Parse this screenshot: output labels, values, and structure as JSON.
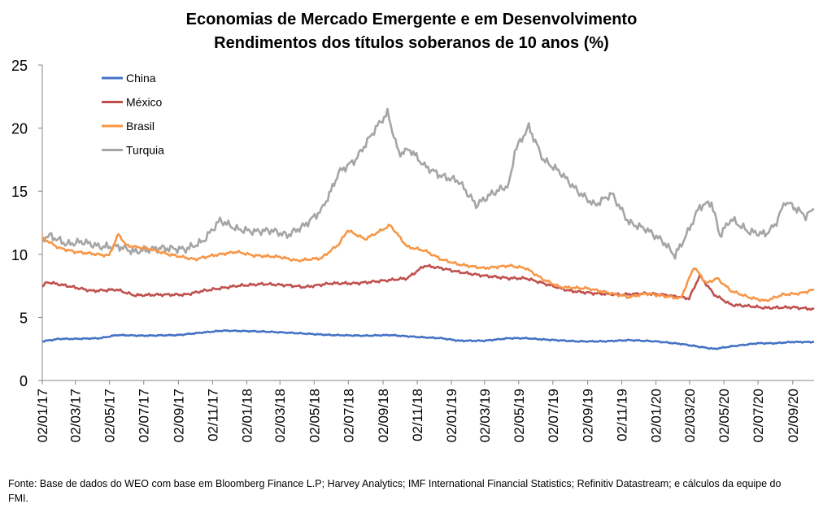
{
  "chart_data": {
    "type": "line",
    "title": "Economias de Mercado Emergente e em Desenvolvimento",
    "subtitle": "Rendimentos dos títulos soberanos de 10 anos (%)",
    "xlabel": "",
    "ylabel": "",
    "ylim": [
      0,
      25
    ],
    "yticks": [
      "0",
      "5",
      "10",
      "15",
      "20",
      "25"
    ],
    "x_tick_labels": [
      "02/01/17",
      "02/03/17",
      "02/05/17",
      "02/07/17",
      "02/09/17",
      "02/11/17",
      "02/01/18",
      "02/03/18",
      "02/05/18",
      "02/07/18",
      "02/09/18",
      "02/11/18",
      "02/01/19",
      "02/03/19",
      "02/05/19",
      "02/07/19",
      "02/09/19",
      "02/11/19",
      "02/01/20",
      "02/03/20",
      "02/05/20",
      "02/07/20",
      "02/09/20"
    ],
    "x_range": [
      "2017-01-02",
      "2020-10-10"
    ],
    "grid": false,
    "legend": "top-left",
    "series": [
      {
        "name": "China",
        "color": "#4472C4",
        "points": [
          [
            "2017-01-02",
            3.1
          ],
          [
            "2017-02-01",
            3.3
          ],
          [
            "2017-03-01",
            3.3
          ],
          [
            "2017-04-15",
            3.35
          ],
          [
            "2017-05-15",
            3.6
          ],
          [
            "2017-07-01",
            3.55
          ],
          [
            "2017-09-01",
            3.6
          ],
          [
            "2017-10-15",
            3.8
          ],
          [
            "2017-11-20",
            3.95
          ],
          [
            "2018-01-15",
            3.9
          ],
          [
            "2018-02-15",
            3.85
          ],
          [
            "2018-04-01",
            3.75
          ],
          [
            "2018-06-01",
            3.6
          ],
          [
            "2018-08-01",
            3.55
          ],
          [
            "2018-09-15",
            3.6
          ],
          [
            "2018-11-01",
            3.45
          ],
          [
            "2018-12-15",
            3.35
          ],
          [
            "2019-01-15",
            3.15
          ],
          [
            "2019-03-01",
            3.15
          ],
          [
            "2019-04-15",
            3.35
          ],
          [
            "2019-05-15",
            3.35
          ],
          [
            "2019-06-15",
            3.25
          ],
          [
            "2019-08-15",
            3.1
          ],
          [
            "2019-10-01",
            3.1
          ],
          [
            "2019-11-15",
            3.2
          ],
          [
            "2020-01-01",
            3.1
          ],
          [
            "2020-02-15",
            2.9
          ],
          [
            "2020-03-15",
            2.7
          ],
          [
            "2020-04-15",
            2.5
          ],
          [
            "2020-05-15",
            2.7
          ],
          [
            "2020-07-01",
            2.95
          ],
          [
            "2020-08-01",
            2.95
          ],
          [
            "2020-09-01",
            3.05
          ],
          [
            "2020-10-10",
            3.05
          ]
        ]
      },
      {
        "name": "México",
        "color": "#C0504D",
        "points": [
          [
            "2017-01-02",
            7.4
          ],
          [
            "2017-01-10",
            7.8
          ],
          [
            "2017-02-15",
            7.5
          ],
          [
            "2017-04-01",
            7.1
          ],
          [
            "2017-05-15",
            7.2
          ],
          [
            "2017-06-15",
            6.75
          ],
          [
            "2017-08-01",
            6.8
          ],
          [
            "2017-09-15",
            6.8
          ],
          [
            "2017-10-15",
            7.1
          ],
          [
            "2017-11-15",
            7.3
          ],
          [
            "2017-12-15",
            7.5
          ],
          [
            "2018-02-01",
            7.65
          ],
          [
            "2018-03-15",
            7.55
          ],
          [
            "2018-04-15",
            7.4
          ],
          [
            "2018-06-01",
            7.7
          ],
          [
            "2018-07-15",
            7.7
          ],
          [
            "2018-09-01",
            7.9
          ],
          [
            "2018-10-15",
            8.1
          ],
          [
            "2018-11-15",
            9.1
          ],
          [
            "2018-12-15",
            8.9
          ],
          [
            "2019-01-15",
            8.6
          ],
          [
            "2019-03-01",
            8.3
          ],
          [
            "2019-04-15",
            8.1
          ],
          [
            "2019-05-15",
            8.1
          ],
          [
            "2019-06-15",
            7.7
          ],
          [
            "2019-08-01",
            7.1
          ],
          [
            "2019-09-15",
            6.9
          ],
          [
            "2019-11-01",
            6.8
          ],
          [
            "2019-12-15",
            6.9
          ],
          [
            "2020-01-15",
            6.8
          ],
          [
            "2020-02-15",
            6.6
          ],
          [
            "2020-03-01",
            6.5
          ],
          [
            "2020-03-20",
            8.3
          ],
          [
            "2020-04-15",
            6.8
          ],
          [
            "2020-05-15",
            6.0
          ],
          [
            "2020-06-15",
            5.9
          ],
          [
            "2020-07-15",
            5.75
          ],
          [
            "2020-09-01",
            5.8
          ],
          [
            "2020-10-10",
            5.65
          ]
        ]
      },
      {
        "name": "Brasil",
        "color": "#F79646",
        "points": [
          [
            "2017-01-02",
            11.3
          ],
          [
            "2017-02-01",
            10.5
          ],
          [
            "2017-03-01",
            10.2
          ],
          [
            "2017-05-01",
            9.9
          ],
          [
            "2017-05-18",
            11.6
          ],
          [
            "2017-06-01",
            10.7
          ],
          [
            "2017-07-15",
            10.4
          ],
          [
            "2017-08-15",
            10.0
          ],
          [
            "2017-10-01",
            9.6
          ],
          [
            "2017-11-01",
            9.9
          ],
          [
            "2017-12-15",
            10.2
          ],
          [
            "2018-01-15",
            9.9
          ],
          [
            "2018-03-01",
            9.8
          ],
          [
            "2018-04-01",
            9.5
          ],
          [
            "2018-05-15",
            9.7
          ],
          [
            "2018-06-15",
            10.8
          ],
          [
            "2018-07-01",
            11.9
          ],
          [
            "2018-08-01",
            11.2
          ],
          [
            "2018-09-15",
            12.3
          ],
          [
            "2018-10-15",
            10.6
          ],
          [
            "2018-11-15",
            10.3
          ],
          [
            "2018-12-15",
            9.6
          ],
          [
            "2019-01-15",
            9.2
          ],
          [
            "2019-03-01",
            8.9
          ],
          [
            "2019-04-15",
            9.1
          ],
          [
            "2019-05-15",
            8.9
          ],
          [
            "2019-06-15",
            8.0
          ],
          [
            "2019-07-15",
            7.4
          ],
          [
            "2019-09-01",
            7.3
          ],
          [
            "2019-10-15",
            6.9
          ],
          [
            "2019-11-15",
            6.6
          ],
          [
            "2019-12-15",
            6.9
          ],
          [
            "2020-01-15",
            6.7
          ],
          [
            "2020-02-15",
            6.5
          ],
          [
            "2020-03-10",
            9.0
          ],
          [
            "2020-04-01",
            7.7
          ],
          [
            "2020-04-20",
            8.1
          ],
          [
            "2020-05-15",
            7.1
          ],
          [
            "2020-06-15",
            6.6
          ],
          [
            "2020-07-15",
            6.3
          ],
          [
            "2020-08-15",
            6.8
          ],
          [
            "2020-09-15",
            6.9
          ],
          [
            "2020-10-10",
            7.2
          ]
        ]
      },
      {
        "name": "Turquia",
        "color": "#A5A5A5",
        "points": [
          [
            "2017-01-02",
            11.2
          ],
          [
            "2017-01-15",
            11.5
          ],
          [
            "2017-02-15",
            10.8
          ],
          [
            "2017-03-15",
            11.0
          ],
          [
            "2017-04-15",
            10.6
          ],
          [
            "2017-05-20",
            10.6
          ],
          [
            "2017-06-15",
            10.2
          ],
          [
            "2017-08-01",
            10.5
          ],
          [
            "2017-09-15",
            10.4
          ],
          [
            "2017-10-15",
            11.0
          ],
          [
            "2017-11-15",
            12.7
          ],
          [
            "2017-12-15",
            12.0
          ],
          [
            "2018-01-15",
            11.8
          ],
          [
            "2018-02-15",
            11.9
          ],
          [
            "2018-03-15",
            11.5
          ],
          [
            "2018-04-15",
            12.3
          ],
          [
            "2018-05-15",
            13.5
          ],
          [
            "2018-06-01",
            15.0
          ],
          [
            "2018-06-15",
            16.5
          ],
          [
            "2018-07-15",
            17.5
          ],
          [
            "2018-08-20",
            20.0
          ],
          [
            "2018-09-10",
            21.2
          ],
          [
            "2018-09-30",
            18.0
          ],
          [
            "2018-10-20",
            18.3
          ],
          [
            "2018-11-15",
            17.0
          ],
          [
            "2018-12-15",
            16.2
          ],
          [
            "2019-01-15",
            15.8
          ],
          [
            "2019-02-15",
            13.9
          ],
          [
            "2019-03-15",
            14.8
          ],
          [
            "2019-04-15",
            15.5
          ],
          [
            "2019-04-25",
            18.2
          ],
          [
            "2019-05-20",
            20.1
          ],
          [
            "2019-06-15",
            17.5
          ],
          [
            "2019-07-15",
            16.5
          ],
          [
            "2019-08-15",
            15.0
          ],
          [
            "2019-09-15",
            13.9
          ],
          [
            "2019-10-15",
            14.8
          ],
          [
            "2019-11-15",
            12.5
          ],
          [
            "2019-12-15",
            12.0
          ],
          [
            "2020-01-15",
            11.0
          ],
          [
            "2020-02-05",
            9.9
          ],
          [
            "2020-02-25",
            11.5
          ],
          [
            "2020-03-20",
            13.8
          ],
          [
            "2020-04-10",
            14.1
          ],
          [
            "2020-04-25",
            11.5
          ],
          [
            "2020-05-15",
            12.8
          ],
          [
            "2020-06-15",
            11.8
          ],
          [
            "2020-07-15",
            11.6
          ],
          [
            "2020-08-01",
            12.3
          ],
          [
            "2020-08-20",
            14.2
          ],
          [
            "2020-09-15",
            13.4
          ],
          [
            "2020-09-25",
            13.0
          ],
          [
            "2020-10-10",
            13.6
          ]
        ]
      }
    ]
  },
  "source_note": "Fonte: Base de dados do WEO com base em Bloomberg Finance L.P; Harvey Analytics; IMF International Financial Statistics; Refinitiv Datastream; e cálculos da equipe do FMI."
}
